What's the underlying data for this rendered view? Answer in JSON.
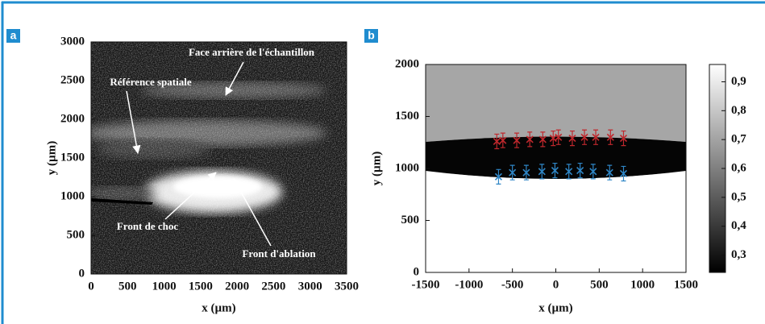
{
  "chart_data": [
    {
      "type": "image",
      "panel_label": "a",
      "xlabel": "x (µm)",
      "ylabel": "y (µm)",
      "xlim": [
        0,
        3500
      ],
      "ylim": [
        0,
        3000
      ],
      "xticks": [
        0,
        500,
        1000,
        1500,
        2000,
        2500,
        3000,
        3500
      ],
      "yticks": [
        0,
        500,
        1000,
        1500,
        2000,
        2500,
        3000
      ],
      "annotations": [
        "Face arrière de l'échantillon",
        "Référence spatiale",
        "Front de choc",
        "Front d'ablation"
      ]
    },
    {
      "type": "scatter",
      "panel_label": "b",
      "xlabel": "x (µm)",
      "ylabel": "y (µm)",
      "xlim": [
        -1500,
        1500
      ],
      "ylim": [
        0,
        2000
      ],
      "xticks": [
        -1500,
        -1000,
        -500,
        0,
        500,
        1000,
        1500
      ],
      "yticks": [
        0,
        500,
        1000,
        1500,
        2000
      ],
      "series": [
        {
          "color": "#c0282d",
          "x": [
            -680,
            -610,
            -450,
            -300,
            -150,
            -30,
            30,
            190,
            330,
            460,
            630,
            780
          ],
          "values": [
            1260,
            1270,
            1270,
            1280,
            1280,
            1290,
            1300,
            1290,
            1300,
            1300,
            1300,
            1290
          ],
          "errors": [
            70,
            70,
            70,
            70,
            70,
            70,
            70,
            70,
            70,
            70,
            70,
            70
          ]
        },
        {
          "color": "#2f86c6",
          "x": [
            -660,
            -500,
            -340,
            -160,
            -10,
            150,
            280,
            430,
            620,
            780
          ],
          "values": [
            920,
            960,
            960,
            970,
            980,
            970,
            980,
            970,
            960,
            950
          ],
          "errors": [
            70,
            70,
            70,
            70,
            70,
            70,
            70,
            70,
            70,
            70
          ]
        }
      ],
      "colorbar": {
        "lim": [
          0.24,
          0.96
        ],
        "ticks": [
          {
            "value": 0.3,
            "label": "0,3"
          },
          {
            "value": 0.4,
            "label": "0,4"
          },
          {
            "value": 0.5,
            "label": "0,5"
          },
          {
            "value": 0.6,
            "label": "0,6"
          },
          {
            "value": 0.7,
            "label": "0,7"
          },
          {
            "value": 0.8,
            "label": "0,8"
          },
          {
            "value": 0.9,
            "label": "0,9"
          }
        ]
      }
    }
  ]
}
